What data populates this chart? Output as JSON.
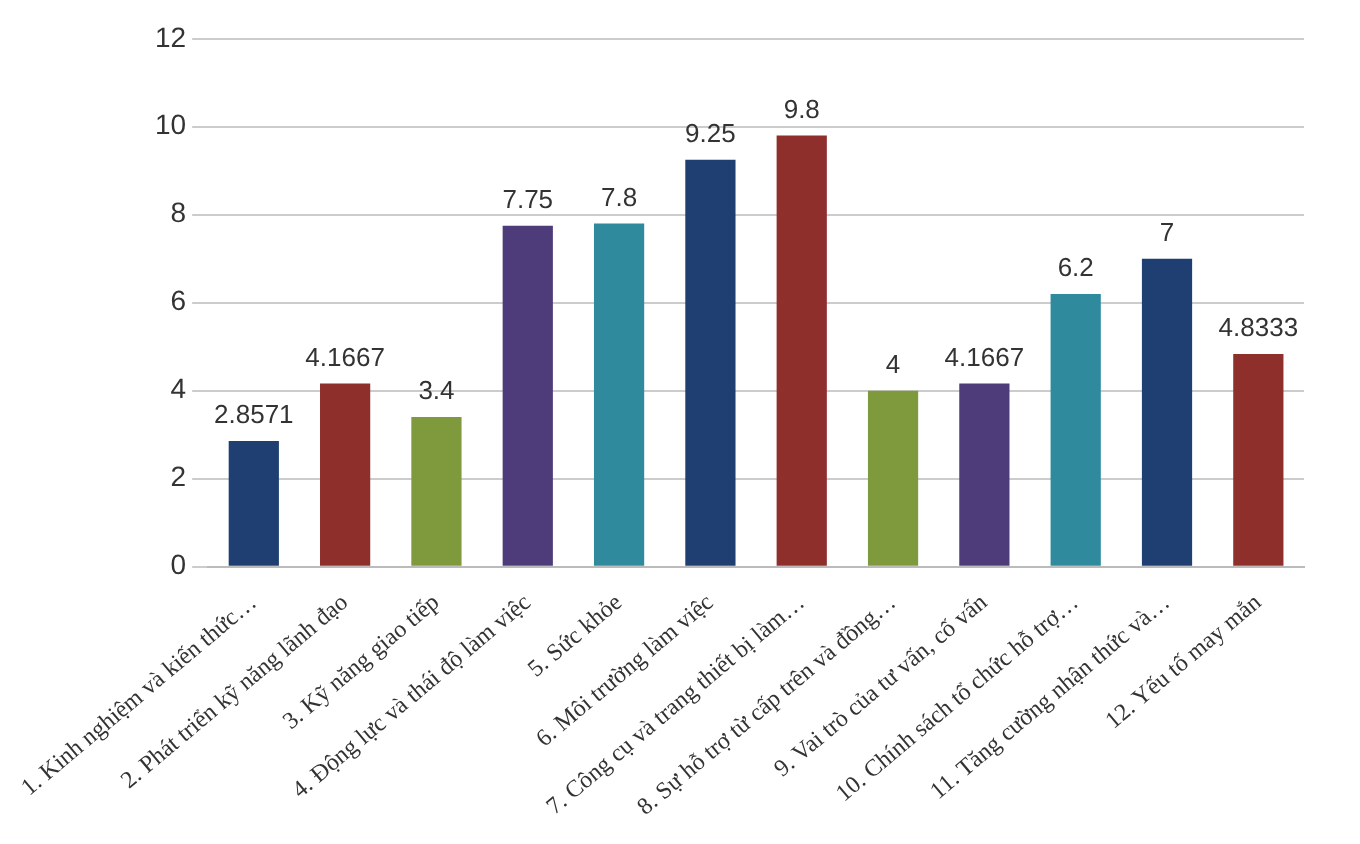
{
  "chart_data": {
    "type": "bar",
    "categories": [
      "1. Kinh nghiệm và kiến thức…",
      "2. Phát triển kỹ năng lãnh đạo",
      "3. Kỹ năng giao tiếp",
      "4. Động lực và thái độ làm việc",
      "5. Sức khỏe",
      "6. Môi trường làm việc",
      "7. Công cụ và trang thiết bị làm…",
      "8. Sự hỗ trợ từ cấp trên và đồng…",
      "9. Vai trò của tư vấn, cố vấn",
      "10. Chính sách tổ chức hỗ trợ…",
      "11. Tăng cường nhận thức và…",
      "12. Yếu tố may mắn"
    ],
    "values": [
      2.8571,
      4.1667,
      3.4,
      7.75,
      7.8,
      9.25,
      9.8,
      4,
      4.1667,
      6.2,
      7,
      4.8333
    ],
    "colors": [
      "#1f3f73",
      "#8e2f2c",
      "#7f9a3c",
      "#4e3b7a",
      "#2f8a9e",
      "#1f3f73",
      "#8e2f2c",
      "#7f9a3c",
      "#4e3b7a",
      "#2f8a9e",
      "#1f3f73",
      "#8e2f2c"
    ],
    "ylim": [
      0,
      12
    ],
    "yticks": [
      0,
      2,
      4,
      6,
      8,
      10,
      12
    ],
    "grid": "y",
    "data_labels": true,
    "legend": false
  }
}
